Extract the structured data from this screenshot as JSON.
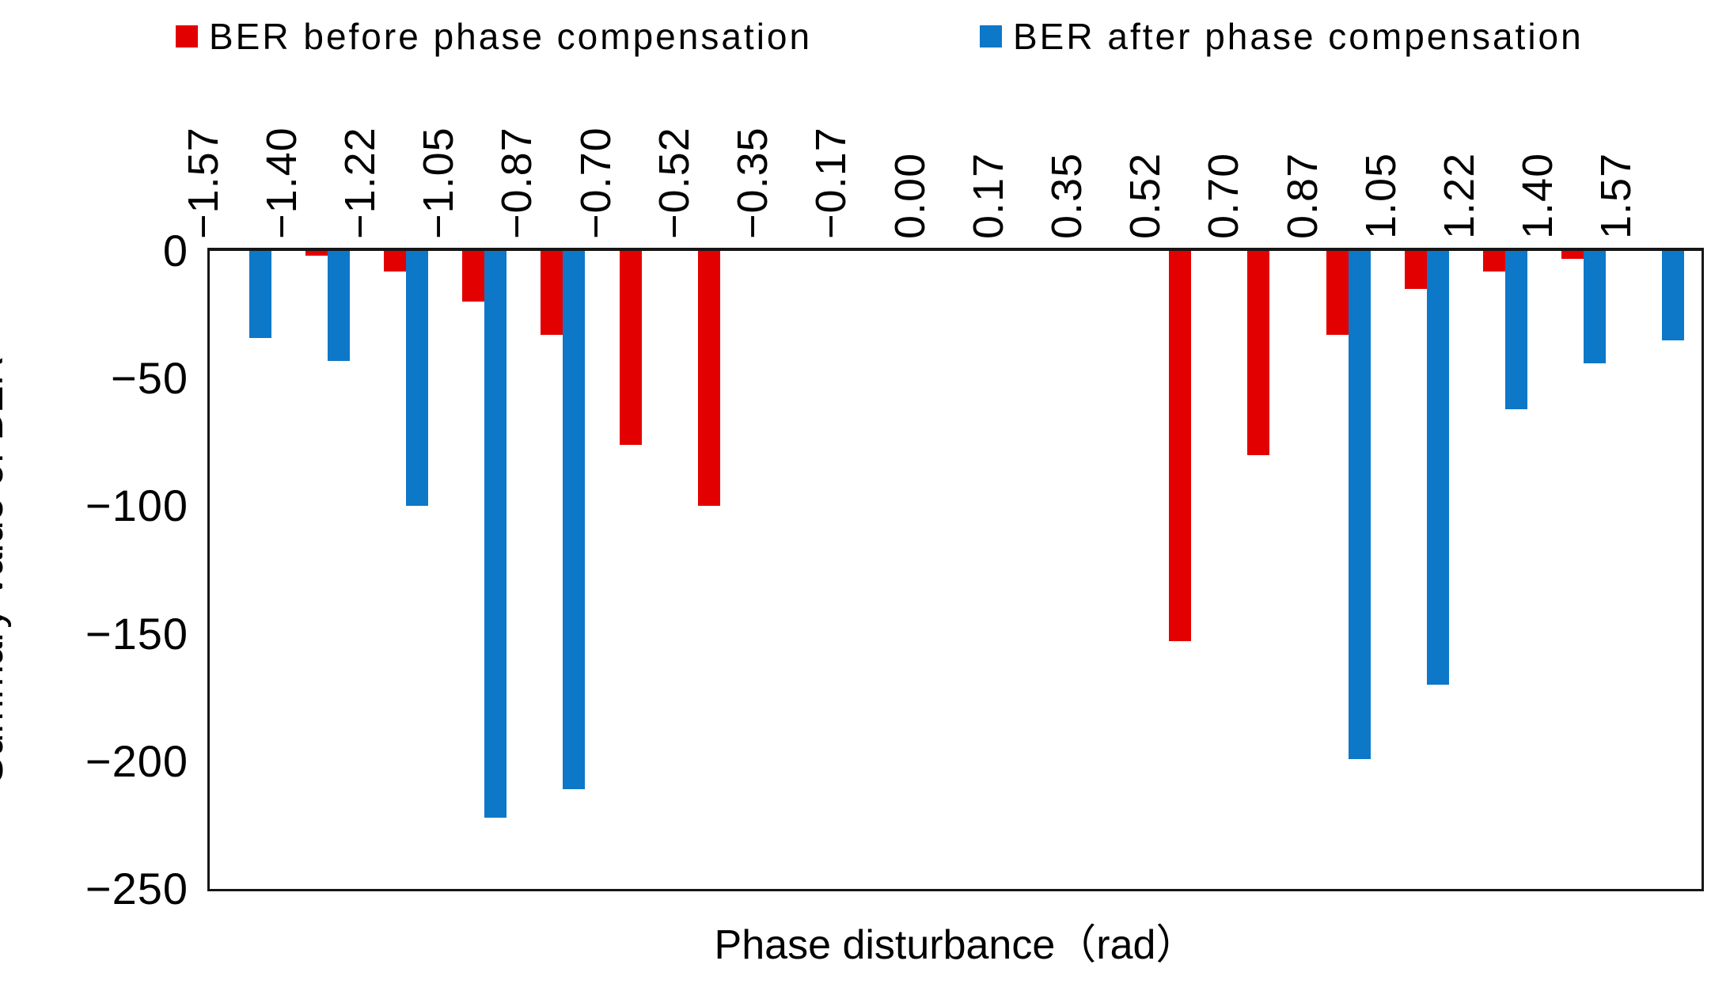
{
  "legend": {
    "before": {
      "label": "BER before phase compensation",
      "color": "#e30000"
    },
    "after": {
      "label": "BER after phase compensation",
      "color": "#0d78c8"
    }
  },
  "y_axis": {
    "title": "Summary value of BER",
    "tick_labels": [
      "0",
      "−50",
      "−100",
      "−150",
      "−200",
      "−250"
    ],
    "min": -250,
    "max": 0
  },
  "x_axis": {
    "title": "Phase disturbance（rad）",
    "tick_labels": [
      "−1.57",
      "−1.40",
      "−1.22",
      "−1.05",
      "−0.87",
      "−0.70",
      "−0.52",
      "−0.35",
      "−0.17",
      "0.00",
      "0.17",
      "0.35",
      "0.52",
      "0.70",
      "0.87",
      "1.05",
      "1.22",
      "1.40",
      "1.57"
    ]
  },
  "chart_data": {
    "type": "bar",
    "orientation": "vertical",
    "title": "",
    "xlabel": "Phase disturbance（rad）",
    "ylabel": "Summary value of BER",
    "categories": [
      -1.57,
      -1.4,
      -1.22,
      -1.05,
      -0.87,
      -0.7,
      -0.52,
      -0.35,
      -0.17,
      0.0,
      0.17,
      0.35,
      0.52,
      0.7,
      0.87,
      1.05,
      1.22,
      1.4,
      1.57
    ],
    "series": [
      {
        "name": "BER before phase compensation",
        "color": "#e30000",
        "values": [
          0,
          -2,
          -8,
          -20,
          -33,
          -76,
          -100,
          0,
          0,
          0,
          0,
          0,
          -153,
          -80,
          -33,
          -15,
          -8,
          -3,
          0
        ]
      },
      {
        "name": "BER after phase compensation",
        "color": "#0d78c8",
        "values": [
          -34,
          -43,
          -100,
          -222,
          -211,
          0,
          0,
          0,
          0,
          0,
          0,
          0,
          0,
          0,
          -199,
          -170,
          -62,
          -44,
          -35
        ]
      }
    ],
    "ylim": [
      -250,
      0
    ],
    "y_ticks": [
      0,
      -50,
      -100,
      -150,
      -200,
      -250
    ],
    "grid": false,
    "legend_position": "top",
    "bars_direction": "downward-from-zero"
  }
}
